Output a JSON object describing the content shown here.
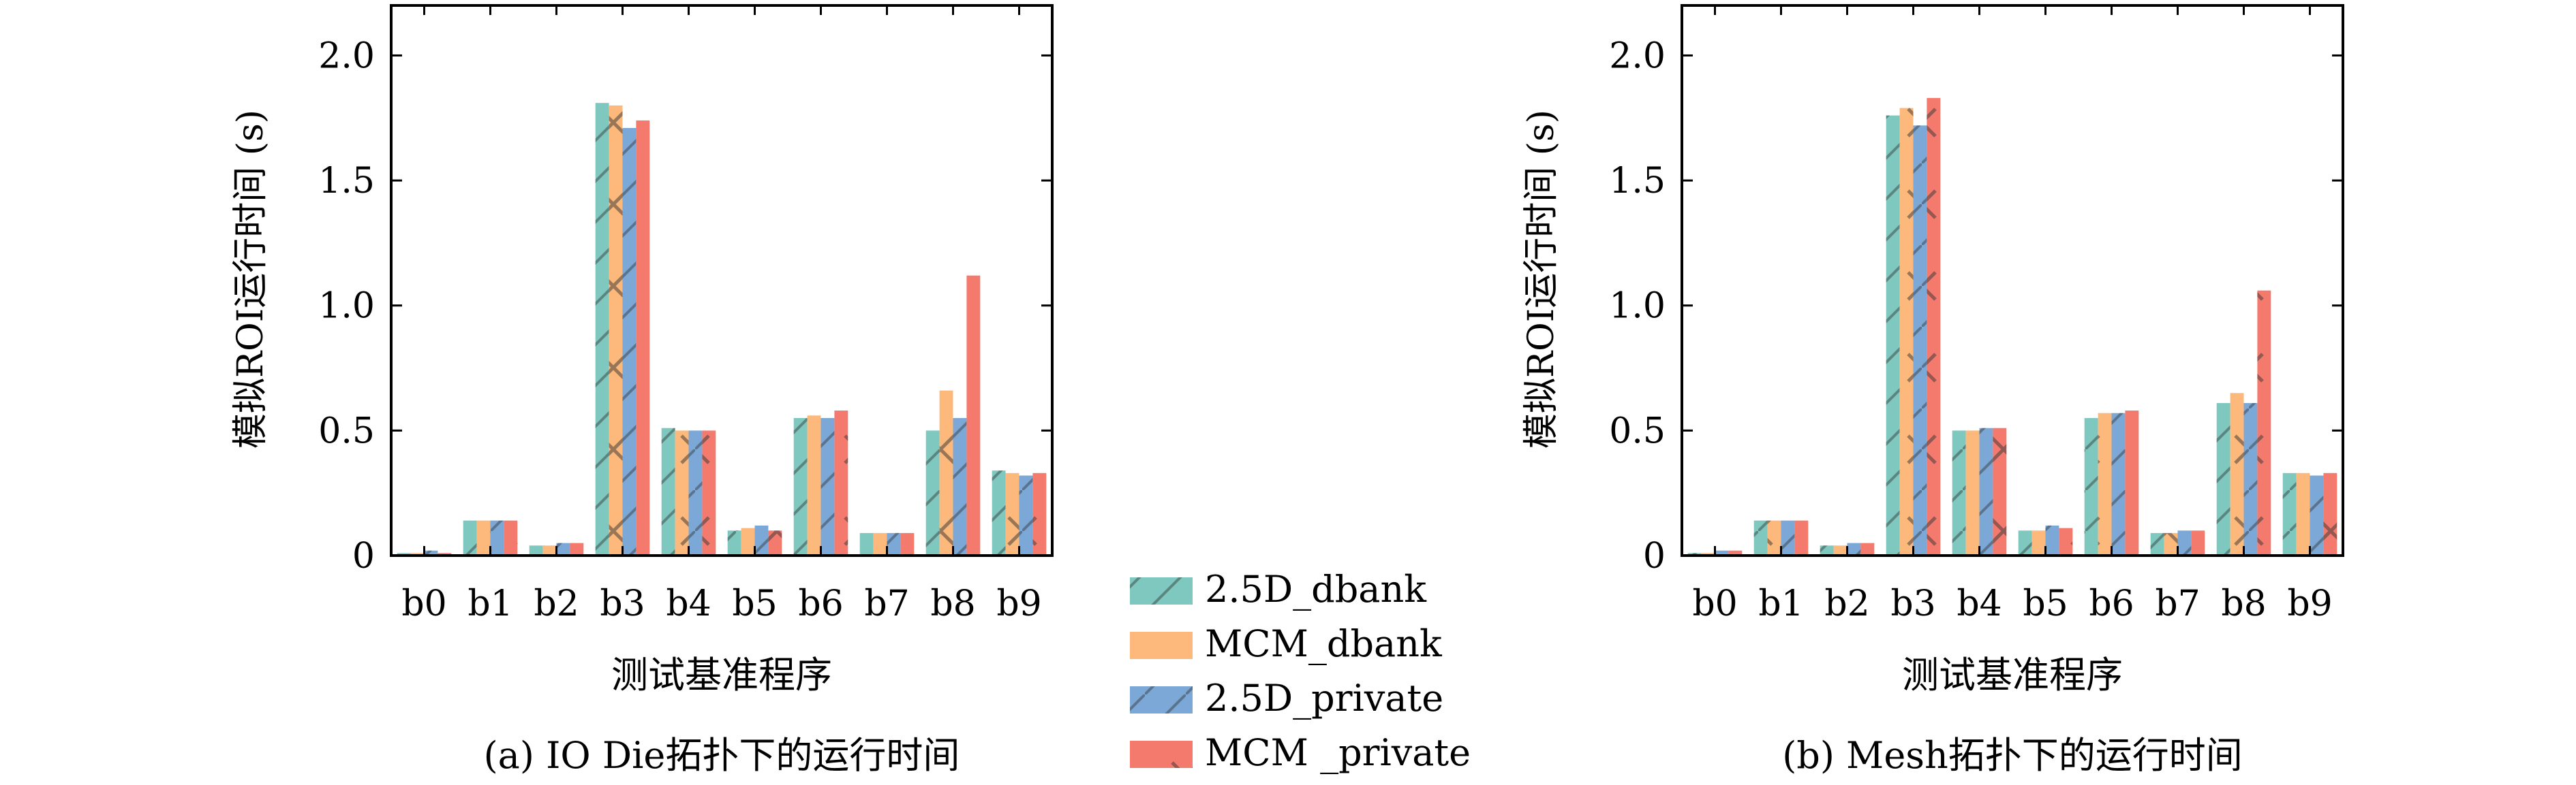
{
  "colors": {
    "2.5D_dbank": "#7fc8c0",
    "MCM_dbank": "#fdb97b",
    "2.5D_private": "#7ba8d6",
    "MCM_private": "#f47a6e",
    "axis": "#000000",
    "hatch": "#333333"
  },
  "legend": {
    "placement": "center-bottom",
    "entries": [
      "2.5D_dbank",
      "MCM_dbank",
      "2.5D_private",
      "MCM _private"
    ]
  },
  "chart_data": [
    {
      "type": "bar",
      "caption": "(a) IO Die拓扑下的运行时间",
      "xlabel": "测试基准程序",
      "ylabel": "模拟ROI运行时间 (s)",
      "categories": [
        "b0",
        "b1",
        "b2",
        "b3",
        "b4",
        "b5",
        "b6",
        "b7",
        "b8",
        "b9"
      ],
      "ylim": [
        0,
        2.2
      ],
      "yticks": [
        "0",
        "0.5",
        "1.0",
        "1.5",
        "2.0"
      ],
      "grid": false,
      "series": [
        {
          "name": "2.5D_dbank",
          "values": [
            0.01,
            0.14,
            0.04,
            1.81,
            0.51,
            0.1,
            0.55,
            0.09,
            0.5,
            0.34
          ]
        },
        {
          "name": "MCM_dbank",
          "values": [
            0.01,
            0.14,
            0.04,
            1.8,
            0.5,
            0.11,
            0.56,
            0.09,
            0.66,
            0.33
          ]
        },
        {
          "name": "2.5D_private",
          "values": [
            0.02,
            0.14,
            0.05,
            1.71,
            0.5,
            0.12,
            0.55,
            0.09,
            0.55,
            0.32
          ]
        },
        {
          "name": "MCM _private",
          "values": [
            0.01,
            0.14,
            0.05,
            1.74,
            0.5,
            0.1,
            0.58,
            0.09,
            1.12,
            0.33
          ]
        }
      ]
    },
    {
      "type": "bar",
      "caption": "(b) Mesh拓扑下的运行时间",
      "xlabel": "测试基准程序",
      "ylabel": "模拟ROI运行时间 (s)",
      "categories": [
        "b0",
        "b1",
        "b2",
        "b3",
        "b4",
        "b5",
        "b6",
        "b7",
        "b8",
        "b9"
      ],
      "ylim": [
        0,
        2.2
      ],
      "yticks": [
        "0",
        "0.5",
        "1.0",
        "1.5",
        "2.0"
      ],
      "grid": false,
      "series": [
        {
          "name": "2.5D_dbank",
          "values": [
            0.01,
            0.14,
            0.04,
            1.76,
            0.5,
            0.1,
            0.55,
            0.09,
            0.61,
            0.33
          ]
        },
        {
          "name": "MCM_dbank",
          "values": [
            0.01,
            0.14,
            0.04,
            1.79,
            0.5,
            0.1,
            0.57,
            0.09,
            0.65,
            0.33
          ]
        },
        {
          "name": "2.5D_private",
          "values": [
            0.02,
            0.14,
            0.05,
            1.72,
            0.51,
            0.12,
            0.57,
            0.1,
            0.61,
            0.32
          ]
        },
        {
          "name": "MCM _private",
          "values": [
            0.02,
            0.14,
            0.05,
            1.83,
            0.51,
            0.11,
            0.58,
            0.1,
            1.06,
            0.33
          ]
        }
      ]
    }
  ]
}
